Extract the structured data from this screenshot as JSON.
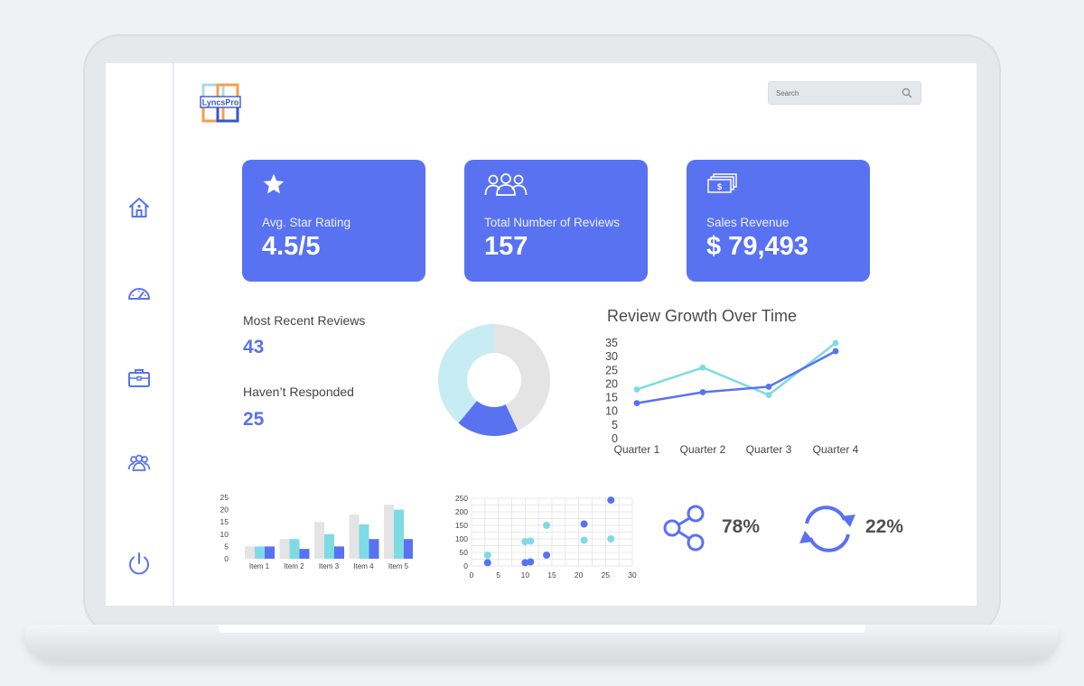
{
  "app": {
    "logo_text": "LyncsPro"
  },
  "sidebar": {
    "items": [
      {
        "name": "home",
        "icon": "home-icon"
      },
      {
        "name": "dashboard",
        "icon": "speedometer-icon"
      },
      {
        "name": "briefcase",
        "icon": "briefcase-icon"
      },
      {
        "name": "team",
        "icon": "users-icon"
      },
      {
        "name": "power",
        "icon": "power-icon"
      }
    ]
  },
  "search": {
    "placeholder": "Search"
  },
  "colors": {
    "accent": "#5872f2",
    "teal": "#7edbe4",
    "light_teal": "#c8ecf3",
    "gray": "#e4e4e4"
  },
  "cards": [
    {
      "icon": "star-icon",
      "label": "Avg. Star Rating",
      "value": "4.5/5"
    },
    {
      "icon": "users-icon",
      "label": "Total Number of Reviews",
      "value": "157"
    },
    {
      "icon": "money-icon",
      "label": "Sales Revenue",
      "value": "$ 79,493"
    }
  ],
  "reviews": {
    "recent_label": "Most Recent Reviews",
    "recent_value": "43",
    "unresponded_label": "Haven’t Responded",
    "unresponded_value": "25"
  },
  "donut": {
    "chart_data": {
      "type": "pie",
      "slices": [
        {
          "value": 43,
          "color": "#e4e4e4"
        },
        {
          "value": 18,
          "color": "#5872f2"
        },
        {
          "value": 39,
          "color": "#c8ecf3"
        }
      ]
    }
  },
  "line": {
    "title": "Review Growth Over Time",
    "chart_data": {
      "type": "line",
      "categories": [
        "Quarter 1",
        "Quarter 2",
        "Quarter 3",
        "Quarter 4"
      ],
      "y_ticks": [
        "35",
        "30",
        "25",
        "20",
        "15",
        "10",
        "5",
        "0"
      ],
      "ylim": [
        0,
        35
      ],
      "series": [
        {
          "values": [
            18,
            26,
            16,
            35
          ],
          "color": "#7edbe4"
        },
        {
          "values": [
            13,
            17,
            19,
            32
          ],
          "color": "#5872f2"
        }
      ]
    }
  },
  "bar": {
    "chart_data": {
      "type": "bar",
      "categories": [
        "Item 1",
        "Item 2",
        "Item 3",
        "Item 4",
        "Item 5"
      ],
      "y_ticks": [
        "25",
        "20",
        "15",
        "10",
        "5",
        "0"
      ],
      "ylim": [
        0,
        25
      ],
      "series": [
        {
          "values": [
            5,
            8,
            15,
            18,
            22
          ],
          "color": "#e4e4e4"
        },
        {
          "values": [
            5,
            8,
            10,
            14,
            20
          ],
          "color": "#7edbe4"
        },
        {
          "values": [
            5,
            4,
            5,
            8,
            8
          ],
          "color": "#5872f2"
        }
      ]
    }
  },
  "scatter": {
    "chart_data": {
      "type": "scatter",
      "x_ticks": [
        "0",
        "5",
        "10",
        "15",
        "20",
        "25",
        "30"
      ],
      "y_ticks": [
        "250",
        "200",
        "150",
        "100",
        "50",
        "0"
      ],
      "xlim": [
        0,
        30
      ],
      "ylim": [
        0,
        250
      ],
      "series": [
        {
          "color": "#7edbe4",
          "points": [
            [
              3,
              40
            ],
            [
              10,
              90
            ],
            [
              11,
              92
            ],
            [
              14,
              150
            ],
            [
              21,
              95
            ],
            [
              26,
              100
            ]
          ]
        },
        {
          "color": "#5872f2",
          "points": [
            [
              3,
              12
            ],
            [
              10,
              12
            ],
            [
              11,
              15
            ],
            [
              14,
              40
            ],
            [
              21,
              155
            ],
            [
              26,
              243
            ]
          ]
        }
      ]
    }
  },
  "stats": {
    "share": {
      "icon": "share-icon",
      "value": "78%"
    },
    "refresh": {
      "icon": "refresh-icon",
      "value": "22%"
    }
  }
}
